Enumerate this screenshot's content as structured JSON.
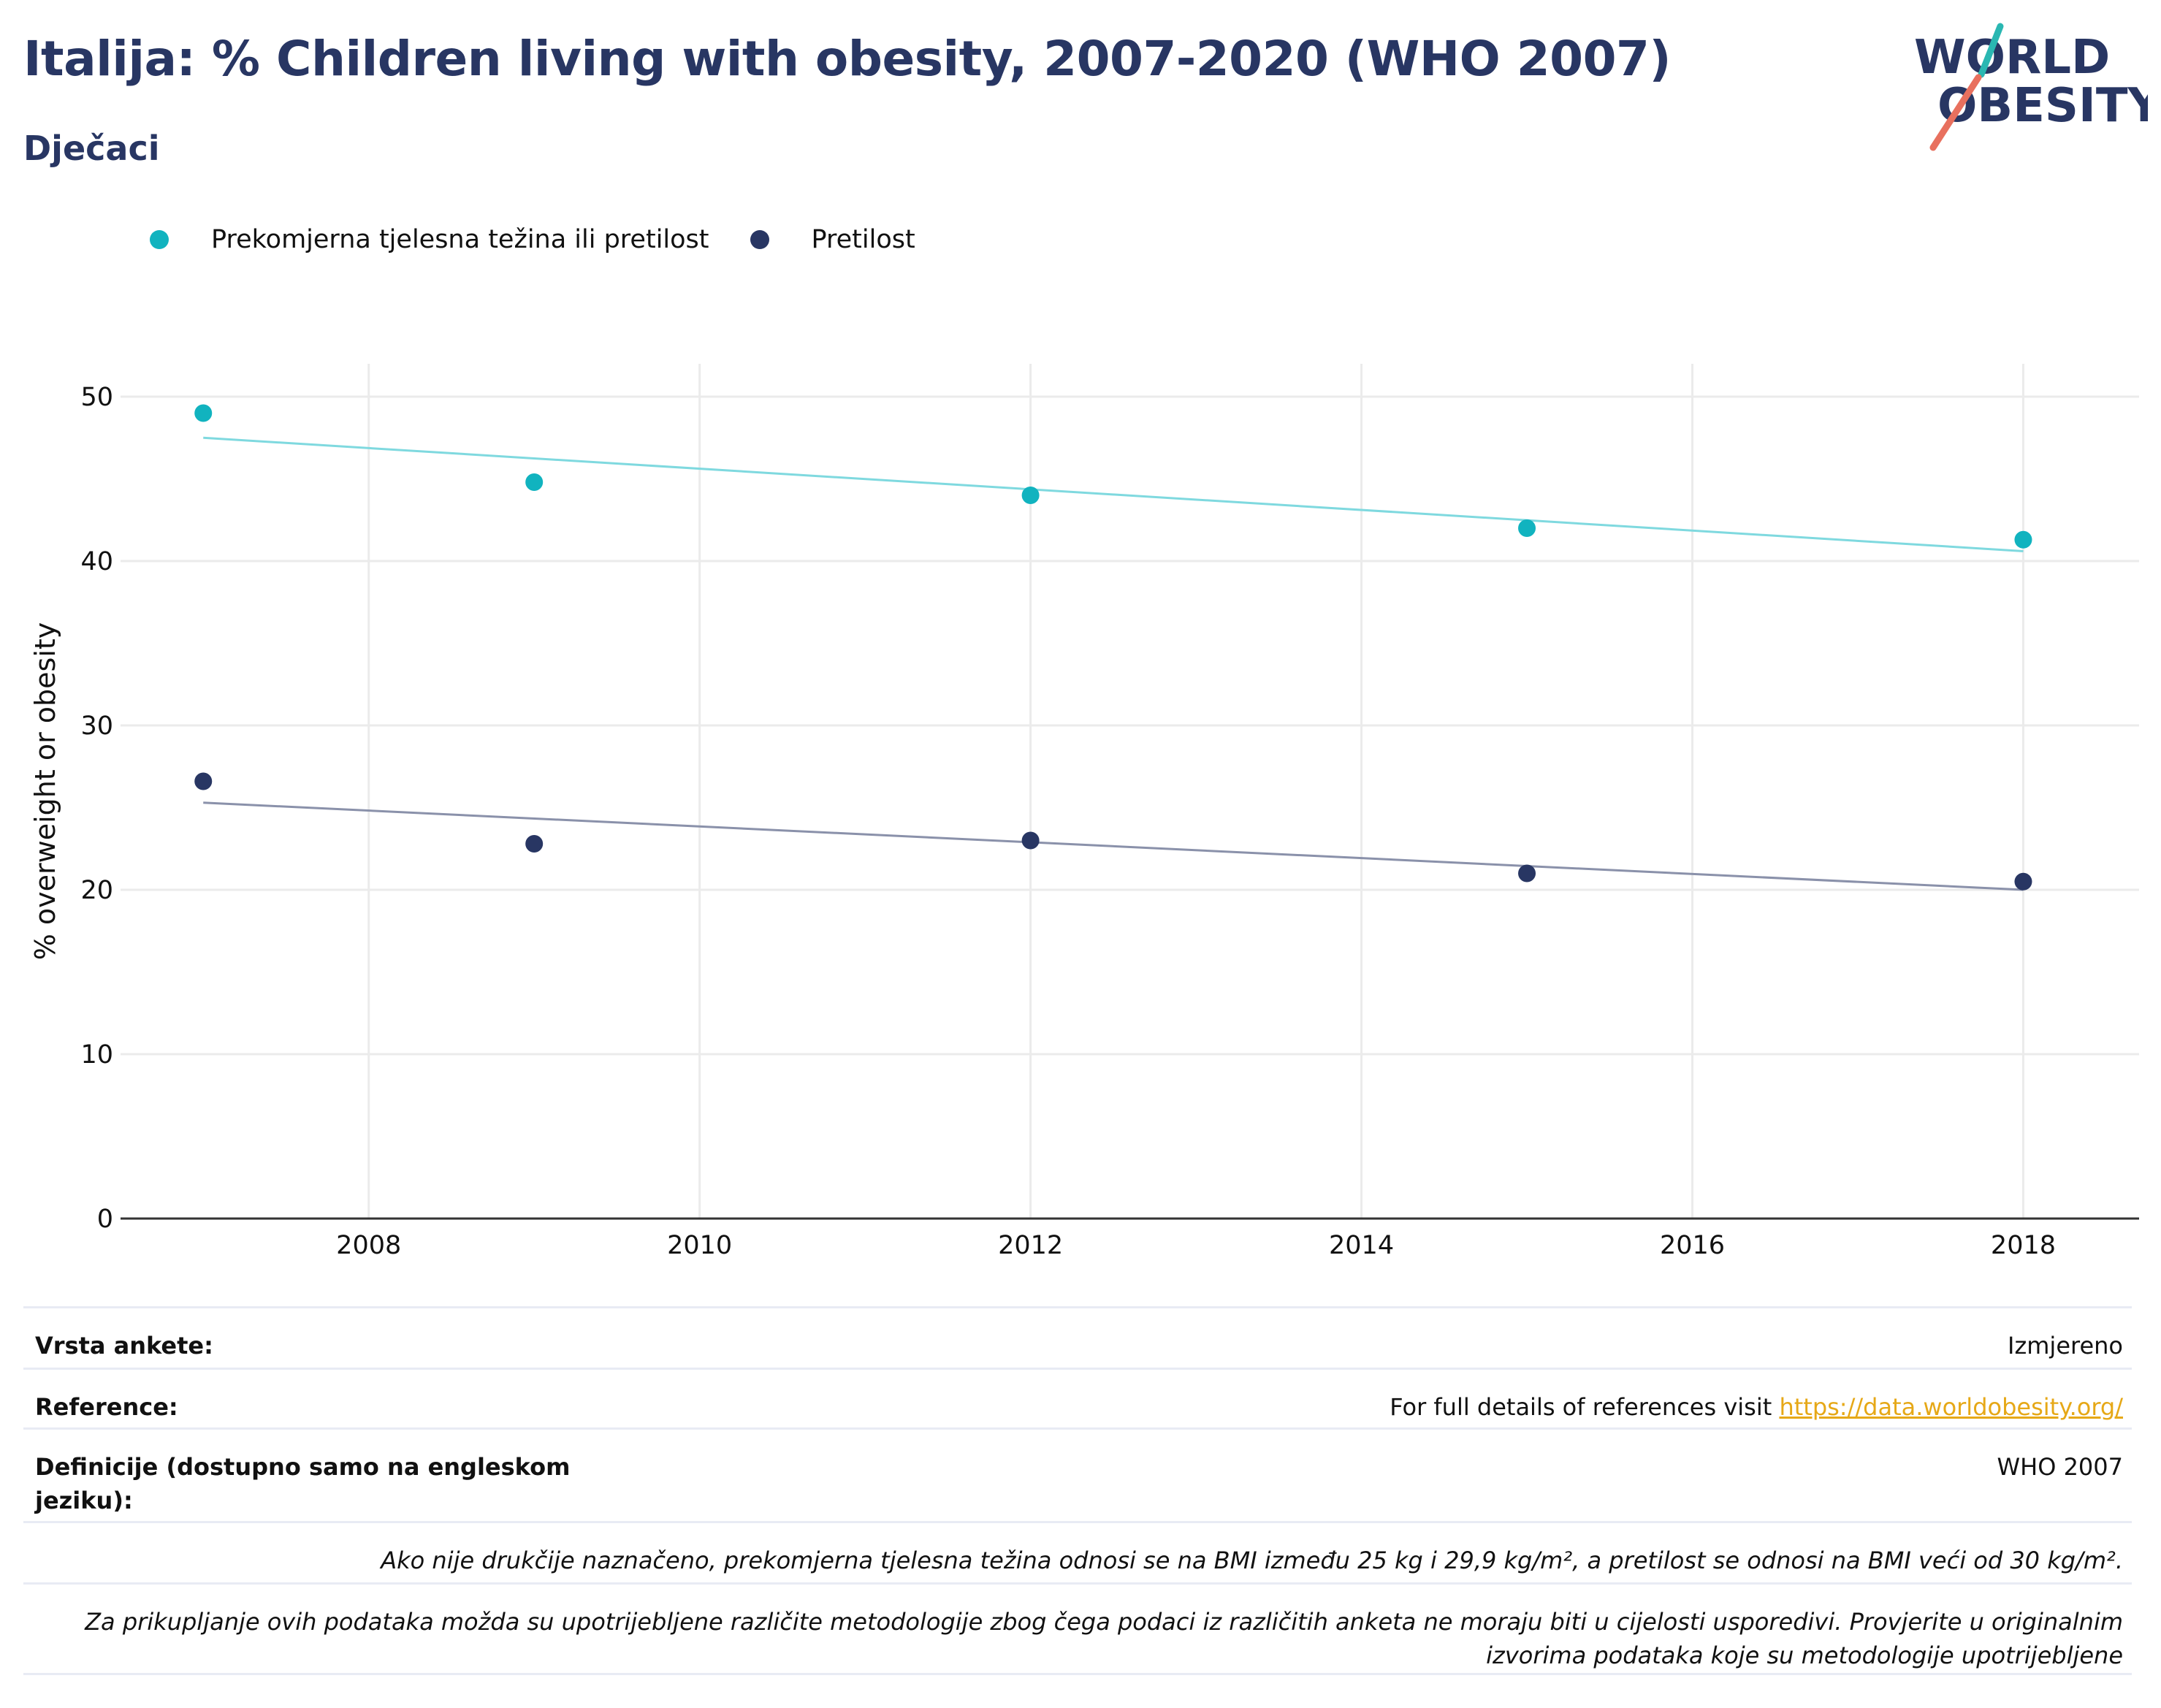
{
  "header": {
    "title": "Italija: % Children living with obesity, 2007-2020 (WHO 2007)",
    "subtitle": "Dječaci",
    "logo_line1": "WORLD",
    "logo_line2": "OBESITY"
  },
  "colors": {
    "navy": "#283663",
    "teal": "#11b3bf",
    "teal_trend": "#7fd9df",
    "navy_trend": "#8a91aa",
    "logo_slash_teal": "#2ab7b2",
    "logo_slash_red": "#e8705e",
    "link": "#e6a817"
  },
  "chart_data": {
    "type": "scatter",
    "ylabel": "% overweight or obesity",
    "xlabel": "",
    "ylim": [
      0,
      52
    ],
    "xlim": [
      2006.5,
      2018.7
    ],
    "xticks": [
      2008,
      2010,
      2012,
      2014,
      2016,
      2018
    ],
    "yticks": [
      0,
      10,
      20,
      30,
      40,
      50
    ],
    "grid": true,
    "legend_position": "top-left",
    "series": [
      {
        "name": "Prekomjerna tjelesna težina ili pretilost",
        "color": "#11b3bf",
        "x": [
          2007,
          2009,
          2012,
          2015,
          2018
        ],
        "y": [
          49.0,
          44.8,
          44.0,
          42.0,
          41.3
        ],
        "trend": [
          [
            2007,
            47.5
          ],
          [
            2018,
            40.6
          ]
        ]
      },
      {
        "name": "Pretilost",
        "color": "#283663",
        "x": [
          2007,
          2009,
          2012,
          2015,
          2018
        ],
        "y": [
          26.6,
          22.8,
          23.0,
          21.0,
          20.5
        ],
        "trend": [
          [
            2007,
            25.3
          ],
          [
            2018,
            20.0
          ]
        ]
      }
    ]
  },
  "info": {
    "survey_label": "Vrsta ankete:",
    "survey_value": "Izmjereno",
    "ref_label": "Reference:",
    "ref_text": "For full details of references visit ",
    "ref_link": "https://data.worldobesity.org/",
    "def_label": "Definicije (dostupno samo na engleskom jeziku):",
    "def_value": "WHO 2007",
    "note1": "Ako nije drukčije naznačeno, prekomjerna tjelesna težina odnosi se na BMI između 25 kg i 29,9 kg/m², a pretilost se odnosi na BMI veći od 30 kg/m².",
    "note2": "Za prikupljanje ovih podataka možda su upotrijebljene različite metodologije zbog čega podaci iz različitih anketa ne moraju biti u cijelosti usporedivi. Provjerite u originalnim izvorima podataka koje su metodologije upotrijebljene"
  }
}
